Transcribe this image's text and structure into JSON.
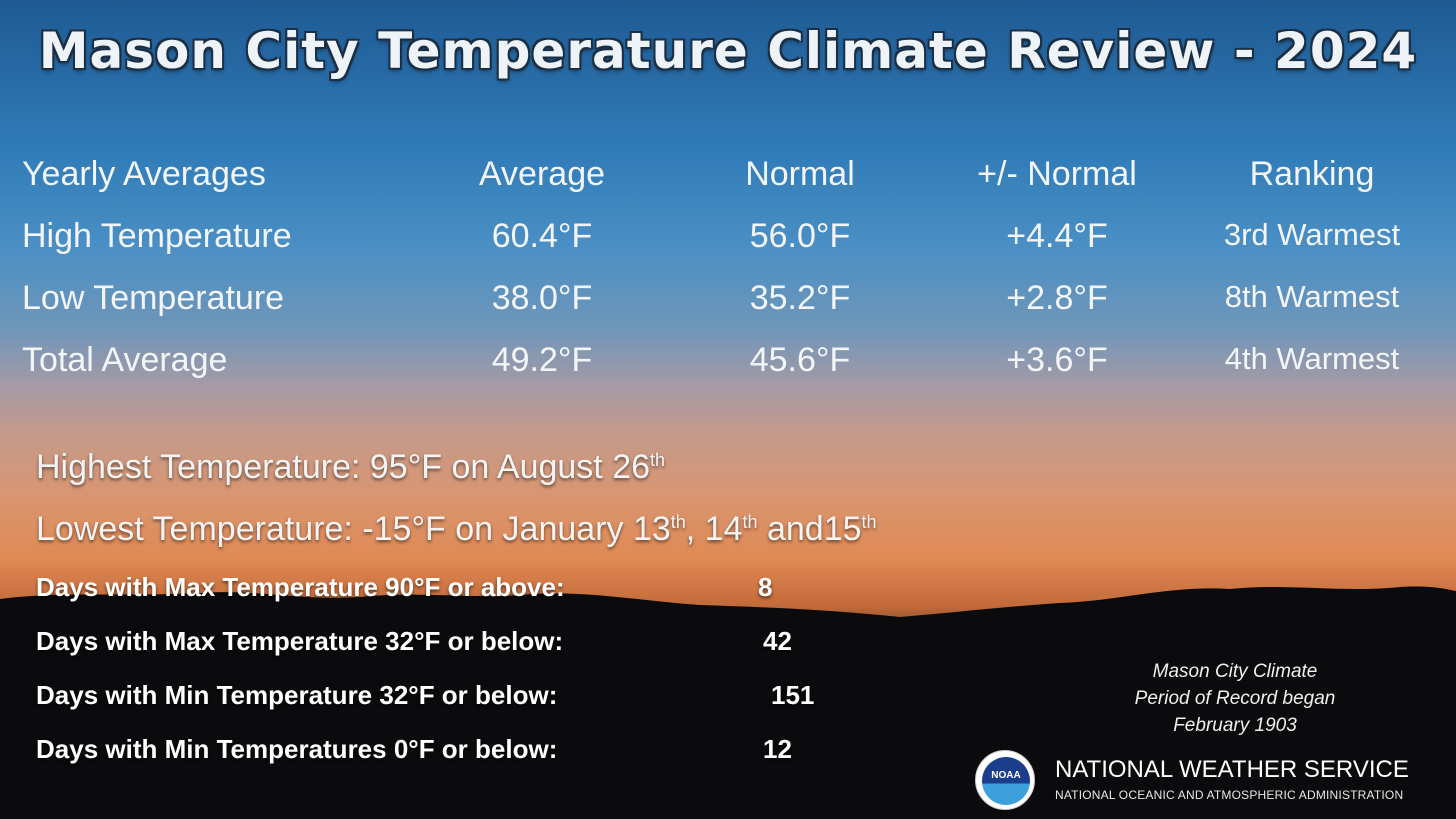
{
  "title": "Mason City Temperature Climate Review - 2024",
  "table": {
    "headers": [
      "Yearly Averages",
      "Average",
      "Normal",
      "+/- Normal",
      "Ranking"
    ],
    "rows": [
      [
        "High Temperature",
        "60.4°F",
        "56.0°F",
        "+4.4°F",
        "3rd Warmest"
      ],
      [
        "Low Temperature",
        "38.0°F",
        "35.2°F",
        "+2.8°F",
        "8th Warmest"
      ],
      [
        "Total Average",
        "49.2°F",
        "45.6°F",
        "+3.6°F",
        "4th Warmest"
      ]
    ]
  },
  "extremes": {
    "highest": {
      "text": "Highest Temperature: 95°F on August 26",
      "sup": "th"
    },
    "lowest": {
      "text": "Lowest Temperature: -15°F on January 13",
      "sup1": "th",
      "mid": ", 14",
      "sup2": "th",
      "mid2": " and15",
      "sup3": "th"
    }
  },
  "days": [
    {
      "label": "Days with Max Temperature 90°F or above:",
      "value": "8"
    },
    {
      "label": "Days with Max Temperature 32°F or below:",
      "value": "42"
    },
    {
      "label": "Days with Min Temperature 32°F or below:",
      "value": "151"
    },
    {
      "label": "Days with Min Temperatures 0°F or below:",
      "value": "12"
    }
  ],
  "note": {
    "line1": "Mason City Climate",
    "line2": "Period of Record began",
    "line3": "February 1903"
  },
  "nws": {
    "logo_text": "NOAA",
    "name": "NATIONAL WEATHER SERVICE",
    "subtitle": "NATIONAL OCEANIC AND ATMOSPHERIC ADMINISTRATION"
  }
}
